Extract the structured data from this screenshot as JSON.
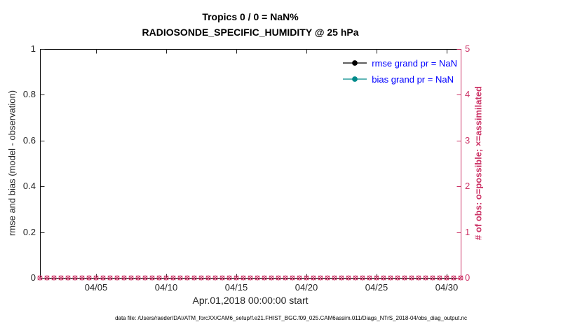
{
  "chart_data": {
    "type": "line",
    "title": "Tropics 0 / 0 = NaN%",
    "subtitle": "RADIOSONDE_SPECIFIC_HUMIDITY @ 25 hPa",
    "xlabel": "Apr.01,2018 00:00:00 start",
    "ylabel_left": "rmse and bias (model - observation)",
    "ylabel_right": "# of obs: o=possible; ×=assimilated",
    "xlim_days": [
      0,
      30
    ],
    "x_ticks": [
      {
        "day": 4,
        "label": "04/05"
      },
      {
        "day": 9,
        "label": "04/10"
      },
      {
        "day": 14,
        "label": "04/15"
      },
      {
        "day": 19,
        "label": "04/20"
      },
      {
        "day": 24,
        "label": "04/25"
      },
      {
        "day": 29,
        "label": "04/30"
      }
    ],
    "ylim_left": [
      0,
      1
    ],
    "yticks_left": [
      "0",
      "0.2",
      "0.4",
      "0.6",
      "0.8",
      "1"
    ],
    "ylim_right": [
      0,
      5
    ],
    "yticks_right": [
      "0",
      "1",
      "2",
      "3",
      "4",
      "5"
    ],
    "series": [
      {
        "name": "rmse grand pr = NaN",
        "color": "#000000",
        "values": []
      },
      {
        "name": "bias grand pr = NaN",
        "color": "#008b8b",
        "values": []
      }
    ],
    "obs_counts": {
      "value": 0,
      "start_day": 0,
      "end_day": 30,
      "interval_days": 0.5,
      "possible_marker": "o",
      "assimilated_marker": "×"
    },
    "colors": {
      "axis": "#262626",
      "right_axis": "#cc3366",
      "legend_text": "#0000ff",
      "obs_marker": "#cc3366"
    }
  },
  "footer": "data file: /Users/raeder/DAI/ATM_forcXX/CAM6_setup/f.e21.FHIST_BGC.f09_025.CAM6assim.011/Diags_NTrS_2018-04/obs_diag_output.nc"
}
